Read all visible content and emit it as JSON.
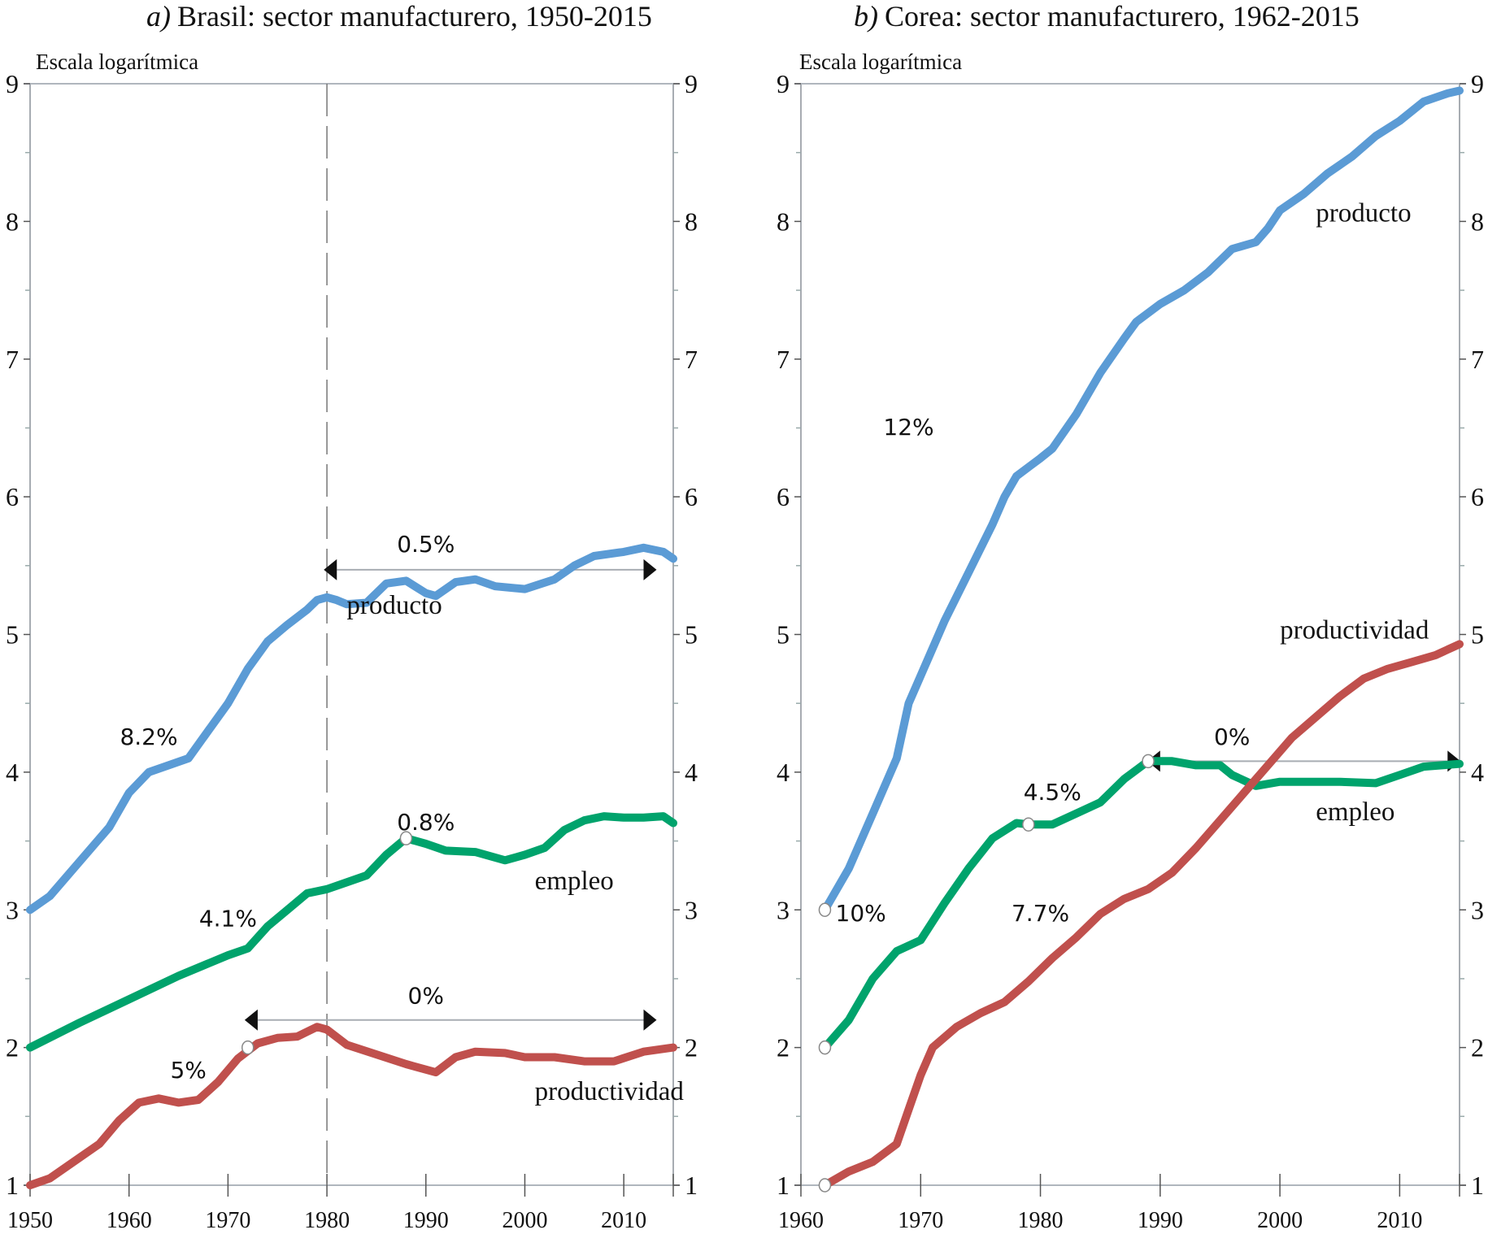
{
  "chart_data": [
    {
      "type": "line",
      "panel_prefix": "a)",
      "title": "Brasil: sector manufacturero, 1950-2015",
      "ylabel": "Escala logarítmica",
      "xlabel": "",
      "xlim": [
        1950,
        2015
      ],
      "ylim": [
        1,
        9
      ],
      "xticks": [
        1950,
        1960,
        1970,
        1980,
        1990,
        2000,
        2010
      ],
      "yticks": [
        1,
        2,
        3,
        4,
        5,
        6,
        7,
        8,
        9
      ],
      "grid": false,
      "reference_line_x": 1980,
      "series": [
        {
          "name": "producto",
          "color": "#5b9bd5",
          "x": [
            1950,
            1952,
            1955,
            1958,
            1960,
            1962,
            1964,
            1966,
            1968,
            1970,
            1972,
            1974,
            1976,
            1978,
            1979,
            1980,
            1981,
            1982,
            1984,
            1985,
            1986,
            1988,
            1990,
            1991,
            1993,
            1995,
            1997,
            2000,
            2003,
            2005,
            2007,
            2010,
            2012,
            2014,
            2015
          ],
          "values": [
            3.0,
            3.1,
            3.35,
            3.6,
            3.85,
            4.0,
            4.05,
            4.1,
            4.3,
            4.5,
            4.75,
            4.95,
            5.07,
            5.18,
            5.25,
            5.27,
            5.25,
            5.22,
            5.23,
            5.3,
            5.37,
            5.39,
            5.3,
            5.28,
            5.38,
            5.4,
            5.35,
            5.33,
            5.4,
            5.5,
            5.57,
            5.6,
            5.63,
            5.6,
            5.55
          ],
          "label_position": [
            1982,
            5.15
          ]
        },
        {
          "name": "empleo",
          "color": "#00a36c",
          "x": [
            1950,
            1955,
            1960,
            1965,
            1970,
            1972,
            1974,
            1976,
            1978,
            1980,
            1982,
            1984,
            1986,
            1988,
            1990,
            1992,
            1995,
            1998,
            2000,
            2002,
            2004,
            2006,
            2008,
            2010,
            2012,
            2014,
            2015
          ],
          "values": [
            2.0,
            2.18,
            2.35,
            2.52,
            2.67,
            2.72,
            2.88,
            3.0,
            3.12,
            3.15,
            3.2,
            3.25,
            3.4,
            3.52,
            3.48,
            3.43,
            3.42,
            3.36,
            3.4,
            3.45,
            3.58,
            3.65,
            3.68,
            3.67,
            3.67,
            3.68,
            3.63
          ],
          "label_position": [
            2001,
            3.15
          ]
        },
        {
          "name": "productividad",
          "color": "#c0504d",
          "x": [
            1950,
            1952,
            1955,
            1957,
            1959,
            1961,
            1963,
            1965,
            1967,
            1969,
            1971,
            1973,
            1975,
            1977,
            1979,
            1980,
            1982,
            1985,
            1988,
            1991,
            1993,
            1995,
            1998,
            2000,
            2003,
            2006,
            2009,
            2012,
            2015
          ],
          "values": [
            1.0,
            1.05,
            1.2,
            1.3,
            1.47,
            1.6,
            1.63,
            1.6,
            1.62,
            1.75,
            1.92,
            2.03,
            2.07,
            2.08,
            2.15,
            2.13,
            2.02,
            1.95,
            1.88,
            1.82,
            1.93,
            1.97,
            1.96,
            1.93,
            1.93,
            1.9,
            1.9,
            1.97,
            2.0
          ],
          "label_position": [
            2001,
            1.62
          ]
        }
      ],
      "markers": [
        {
          "series": "empleo",
          "x": 1988,
          "y": 3.52
        },
        {
          "series": "productividad",
          "x": 1972,
          "y": 2.0
        }
      ],
      "annotations": [
        {
          "text": "8.2%",
          "x": 1962,
          "y": 4.2
        },
        {
          "text": "4.1%",
          "x": 1970,
          "y": 2.88
        },
        {
          "text": "5%",
          "x": 1966,
          "y": 1.78
        },
        {
          "text": "0.5%",
          "x": 1990,
          "y": 5.6
        },
        {
          "text": "0.8%",
          "x": 1990,
          "y": 3.58
        },
        {
          "text": "0%",
          "x": 1990,
          "y": 2.32
        }
      ],
      "range_arrows": [
        {
          "label": "0.5%",
          "x_from": 1981,
          "x_to": 2012,
          "y": 5.47
        },
        {
          "label": "0%",
          "x_from": 1973,
          "x_to": 2012,
          "y": 2.2
        }
      ]
    },
    {
      "type": "line",
      "panel_prefix": "b)",
      "title": "Corea: sector manufacturero, 1962-2015",
      "ylabel": "Escala logarítmica",
      "xlabel": "",
      "xlim": [
        1960,
        2015
      ],
      "ylim": [
        1,
        9
      ],
      "xticks": [
        1960,
        1970,
        1980,
        1990,
        2000,
        2010
      ],
      "yticks": [
        1,
        2,
        3,
        4,
        5,
        6,
        7,
        8,
        9
      ],
      "grid": false,
      "series": [
        {
          "name": "producto",
          "color": "#5b9bd5",
          "x": [
            1962,
            1964,
            1966,
            1968,
            1969,
            1970,
            1972,
            1974,
            1976,
            1977,
            1978,
            1980,
            1981,
            1983,
            1985,
            1987,
            1988,
            1990,
            1992,
            1994,
            1996,
            1998,
            1999,
            2000,
            2002,
            2004,
            2006,
            2008,
            2010,
            2012,
            2014,
            2015
          ],
          "values": [
            3.0,
            3.3,
            3.7,
            4.1,
            4.5,
            4.7,
            5.1,
            5.45,
            5.8,
            6.0,
            6.15,
            6.28,
            6.35,
            6.6,
            6.9,
            7.15,
            7.27,
            7.4,
            7.5,
            7.63,
            7.8,
            7.85,
            7.95,
            8.08,
            8.2,
            8.35,
            8.47,
            8.62,
            8.73,
            8.87,
            8.93,
            8.95
          ],
          "label_position": [
            2003,
            8.0
          ]
        },
        {
          "name": "empleo",
          "color": "#00a36c",
          "x": [
            1962,
            1964,
            1966,
            1968,
            1970,
            1972,
            1974,
            1976,
            1978,
            1979,
            1981,
            1983,
            1985,
            1987,
            1989,
            1991,
            1993,
            1995,
            1996,
            1998,
            2000,
            2003,
            2005,
            2008,
            2010,
            2012,
            2015
          ],
          "values": [
            2.0,
            2.2,
            2.5,
            2.7,
            2.78,
            3.05,
            3.3,
            3.52,
            3.63,
            3.62,
            3.62,
            3.7,
            3.78,
            3.95,
            4.08,
            4.08,
            4.05,
            4.05,
            3.98,
            3.9,
            3.93,
            3.93,
            3.93,
            3.92,
            3.98,
            4.04,
            4.06
          ],
          "label_position": [
            2003,
            3.65
          ]
        },
        {
          "name": "productividad",
          "color": "#c0504d",
          "x": [
            1962,
            1964,
            1966,
            1968,
            1969,
            1970,
            1971,
            1973,
            1975,
            1977,
            1979,
            1981,
            1983,
            1985,
            1987,
            1989,
            1991,
            1993,
            1995,
            1997,
            1999,
            2001,
            2003,
            2005,
            2007,
            2009,
            2011,
            2013,
            2015
          ],
          "values": [
            1.0,
            1.1,
            1.17,
            1.3,
            1.55,
            1.8,
            2.0,
            2.15,
            2.25,
            2.33,
            2.48,
            2.65,
            2.8,
            2.97,
            3.08,
            3.15,
            3.27,
            3.45,
            3.65,
            3.85,
            4.05,
            4.25,
            4.4,
            4.55,
            4.68,
            4.75,
            4.8,
            4.85,
            4.93
          ],
          "label_position": [
            2000,
            4.97
          ]
        }
      ],
      "markers": [
        {
          "series": "producto",
          "x": 1962,
          "y": 3.0
        },
        {
          "series": "empleo",
          "x": 1962,
          "y": 2.0
        },
        {
          "series": "empleo",
          "x": 1979,
          "y": 3.62
        },
        {
          "series": "empleo",
          "x": 1989,
          "y": 4.08
        },
        {
          "series": "productividad",
          "x": 1962,
          "y": 1.0
        }
      ],
      "annotations": [
        {
          "text": "12%",
          "x": 1969,
          "y": 6.45
        },
        {
          "text": "10%",
          "x": 1965,
          "y": 2.92
        },
        {
          "text": "7.7%",
          "x": 1980,
          "y": 2.92
        },
        {
          "text": "4.5%",
          "x": 1981,
          "y": 3.8
        },
        {
          "text": "0%",
          "x": 1996,
          "y": 4.2
        }
      ],
      "range_arrows": [
        {
          "label": "0%",
          "x_from": 1990,
          "x_to": 2014,
          "y": 4.08
        }
      ]
    }
  ]
}
